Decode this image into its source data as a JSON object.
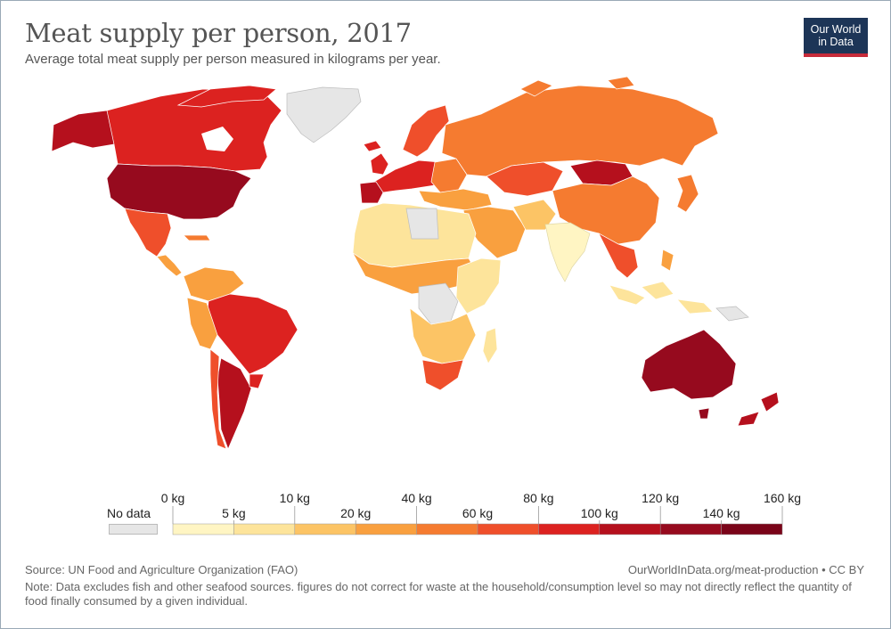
{
  "header": {
    "title": "Meat supply per person, 2017",
    "subtitle": "Average total meat supply per person measured in kilograms per year."
  },
  "logo": {
    "line1": "Our World",
    "line2": "in Data"
  },
  "legend": {
    "no_data_label": "No data",
    "no_data_color": "#e6e6e6",
    "top_ticks": [
      "0 kg",
      "10 kg",
      "40 kg",
      "80 kg",
      "120 kg",
      "160 kg"
    ],
    "bottom_ticks": [
      "5 kg",
      "20 kg",
      "60 kg",
      "100 kg",
      "140 kg"
    ],
    "colors": [
      "#fff5c3",
      "#fde49b",
      "#fcc465",
      "#f9a03f",
      "#f57b30",
      "#ef4f2b",
      "#dc2220",
      "#b5101d",
      "#960a1e",
      "#7a0419"
    ]
  },
  "footer": {
    "source": "Source: UN Food and Agriculture Organization (FAO)",
    "url": "OurWorldInData.org/meat-production • CC BY",
    "note": "Note: Data excludes fish and other seafood sources. figures do not correct for waste at the household/consumption level so may not directly reflect the quantity of food finally consumed by a given individual."
  }
}
